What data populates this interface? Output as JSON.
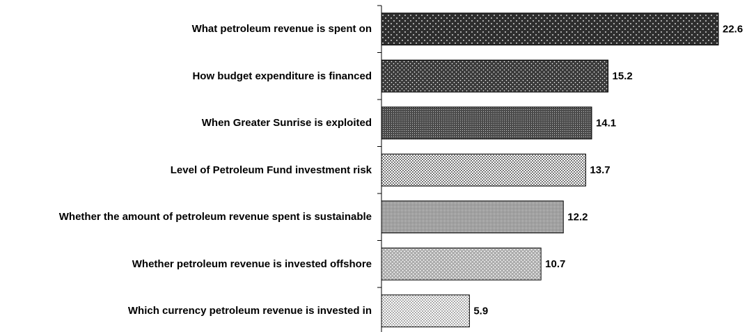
{
  "chart_data": {
    "type": "bar",
    "orientation": "horizontal",
    "categories": [
      "What petroleum revenue is spent on",
      "How budget expenditure is financed",
      "When Greater Sunrise is exploited",
      "Level of Petroleum Fund investment risk",
      "Whether the amount of petroleum revenue spent is sustainable",
      "Whether petroleum revenue is invested offshore",
      "Which currency petroleum revenue is invested in"
    ],
    "values": [
      22.6,
      15.2,
      14.1,
      13.7,
      12.2,
      10.7,
      5.9
    ]
  }
}
